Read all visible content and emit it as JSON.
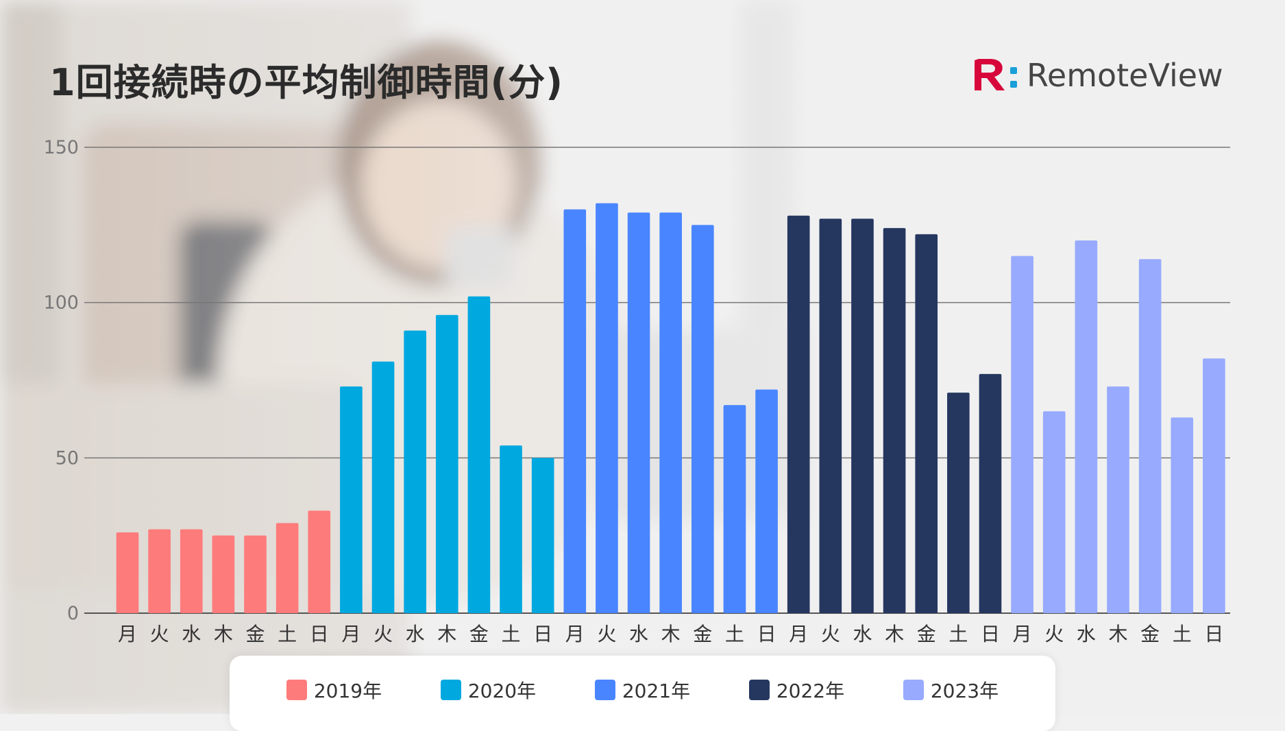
{
  "title": "1回接続時の平均制御時間(分)",
  "logo": {
    "text": "RemoteView",
    "colors": {
      "r": "#d7063b",
      "dots": "#1a9fd8"
    }
  },
  "chart_data": {
    "type": "bar",
    "xlabel": "",
    "ylabel": "",
    "ylim": [
      0,
      150
    ],
    "yticks": [
      "0",
      "50",
      "100",
      "150"
    ],
    "grid": true,
    "legend_position": "bottom",
    "days": [
      "月",
      "火",
      "水",
      "木",
      "金",
      "土",
      "日"
    ],
    "series": [
      {
        "name": "2019年",
        "color": "#fe7b7b",
        "values": [
          26,
          27,
          27,
          25,
          25,
          29,
          33
        ]
      },
      {
        "name": "2020年",
        "color": "#00a8e0",
        "values": [
          73,
          81,
          91,
          96,
          102,
          54,
          50
        ]
      },
      {
        "name": "2021年",
        "color": "#4985ff",
        "values": [
          130,
          132,
          129,
          129,
          125,
          67,
          72
        ]
      },
      {
        "name": "2022年",
        "color": "#25375f",
        "values": [
          128,
          127,
          127,
          124,
          122,
          71,
          77
        ]
      },
      {
        "name": "2023年",
        "color": "#97aafe",
        "values": [
          115,
          65,
          120,
          73,
          114,
          63,
          82
        ]
      }
    ]
  }
}
